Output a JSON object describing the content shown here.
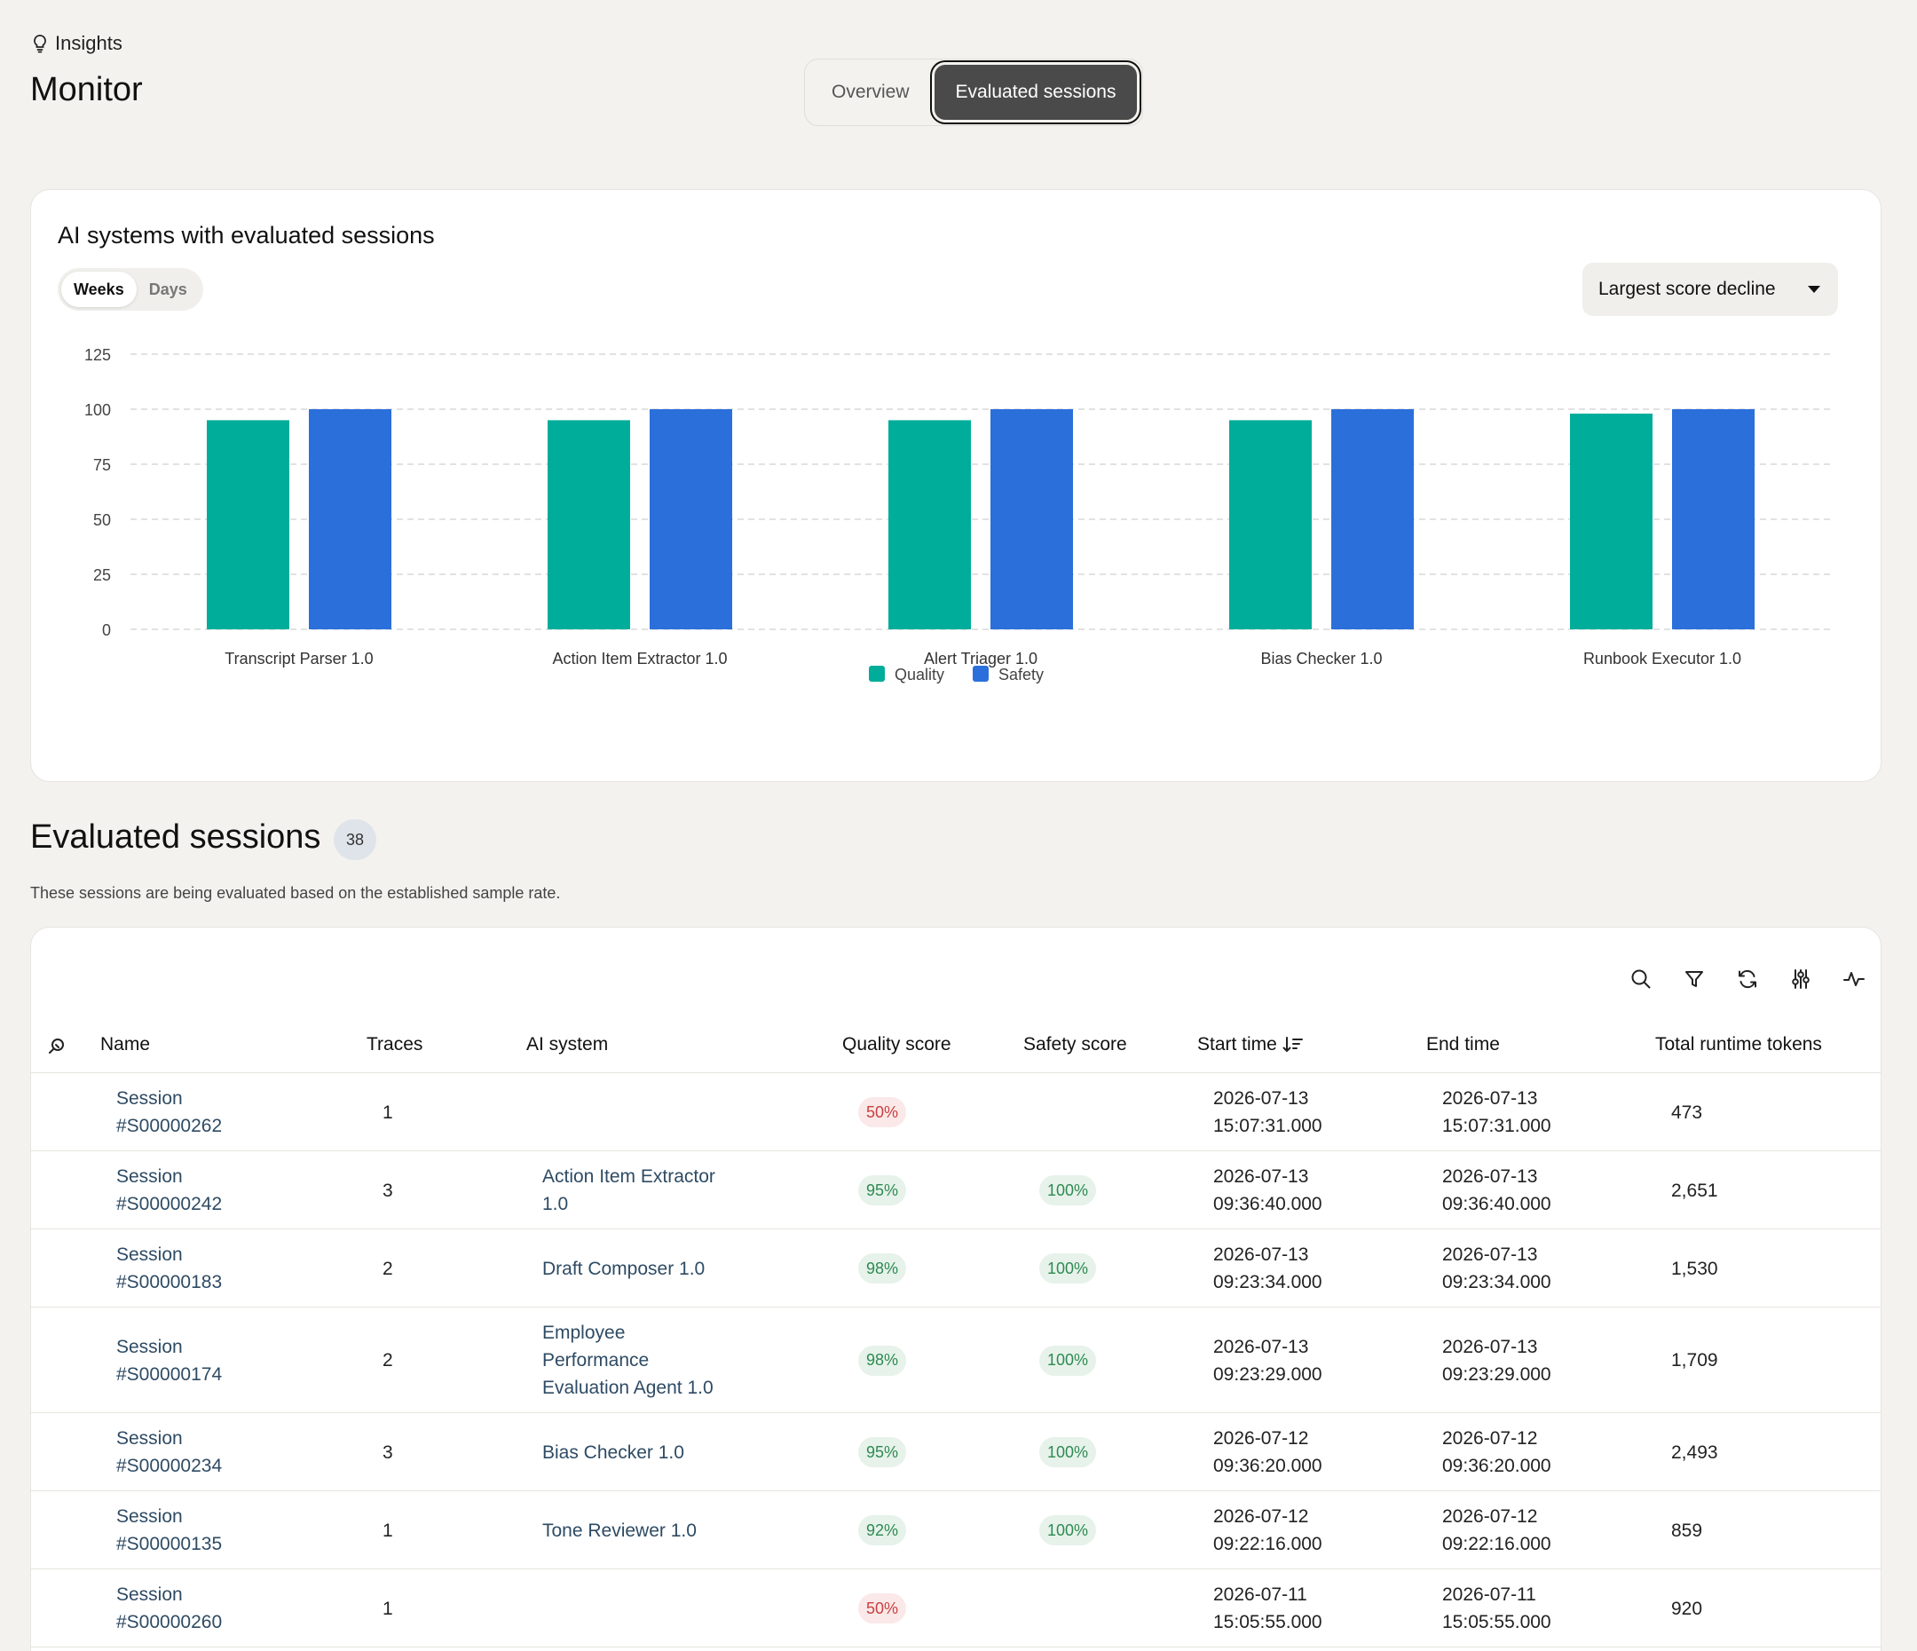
{
  "breadcrumb": {
    "icon": "lightbulb-icon",
    "label": "Insights"
  },
  "page_title": "Monitor",
  "view_tabs": [
    {
      "label": "Overview",
      "active": false
    },
    {
      "label": "Evaluated sessions",
      "active": true
    }
  ],
  "chart_card": {
    "title": "AI systems with evaluated sessions",
    "granularity_options": [
      {
        "label": "Weeks",
        "active": true
      },
      {
        "label": "Days",
        "active": false
      }
    ],
    "sort_dropdown": {
      "selected": "Largest score decline"
    }
  },
  "chart_data": {
    "type": "bar",
    "title": "",
    "xlabel": "",
    "ylabel": "",
    "ylim": [
      0,
      125
    ],
    "yticks": [
      0,
      25,
      50,
      75,
      100,
      125
    ],
    "grid": true,
    "legend_position": "bottom-center",
    "categories": [
      "Transcript Parser 1.0",
      "Action Item Extractor 1.0",
      "Alert Triager 1.0",
      "Bias Checker 1.0",
      "Runbook Executor 1.0"
    ],
    "series": [
      {
        "name": "Quality",
        "color": "#00ad9a",
        "values": [
          95,
          95,
          95,
          95,
          98
        ]
      },
      {
        "name": "Safety",
        "color": "#2b6fdb",
        "values": [
          100,
          100,
          100,
          100,
          100
        ]
      }
    ]
  },
  "sessions_section": {
    "title": "Evaluated sessions",
    "count": "38",
    "description": "These sessions are being evaluated based on the established sample rate."
  },
  "toolbar_icons": [
    "search-icon",
    "filter-icon",
    "refresh-icon",
    "column-settings-icon",
    "activity-icon"
  ],
  "table": {
    "columns": {
      "name": "Name",
      "traces": "Traces",
      "ai_system": "AI system",
      "quality": "Quality score",
      "safety": "Safety score",
      "start": "Start time",
      "end": "End time",
      "tokens": "Total runtime tokens"
    },
    "rows": [
      {
        "name": [
          "Session",
          "#S00000262"
        ],
        "traces": "1",
        "ai_system": [],
        "quality": "50%",
        "quality_status": "bad",
        "safety": "",
        "start": [
          "2026-07-13",
          "15:07:31.000"
        ],
        "end": [
          "2026-07-13",
          "15:07:31.000"
        ],
        "tokens": "473"
      },
      {
        "name": [
          "Session",
          "#S00000242"
        ],
        "traces": "3",
        "ai_system": [
          "Action Item Extractor",
          "1.0"
        ],
        "quality": "95%",
        "quality_status": "ok",
        "safety": "100%",
        "start": [
          "2026-07-13",
          "09:36:40.000"
        ],
        "end": [
          "2026-07-13",
          "09:36:40.000"
        ],
        "tokens": "2,651"
      },
      {
        "name": [
          "Session",
          "#S00000183"
        ],
        "traces": "2",
        "ai_system": [
          "Draft Composer 1.0"
        ],
        "quality": "98%",
        "quality_status": "ok",
        "safety": "100%",
        "start": [
          "2026-07-13",
          "09:23:34.000"
        ],
        "end": [
          "2026-07-13",
          "09:23:34.000"
        ],
        "tokens": "1,530"
      },
      {
        "name": [
          "Session",
          "#S00000174"
        ],
        "traces": "2",
        "ai_system": [
          "Employee",
          "Performance",
          "Evaluation Agent 1.0"
        ],
        "quality": "98%",
        "quality_status": "ok",
        "safety": "100%",
        "start": [
          "2026-07-13",
          "09:23:29.000"
        ],
        "end": [
          "2026-07-13",
          "09:23:29.000"
        ],
        "tokens": "1,709"
      },
      {
        "name": [
          "Session",
          "#S00000234"
        ],
        "traces": "3",
        "ai_system": [
          "Bias Checker 1.0"
        ],
        "quality": "95%",
        "quality_status": "ok",
        "safety": "100%",
        "start": [
          "2026-07-12",
          "09:36:20.000"
        ],
        "end": [
          "2026-07-12",
          "09:36:20.000"
        ],
        "tokens": "2,493"
      },
      {
        "name": [
          "Session",
          "#S00000135"
        ],
        "traces": "1",
        "ai_system": [
          "Tone Reviewer 1.0"
        ],
        "quality": "92%",
        "quality_status": "ok",
        "safety": "100%",
        "start": [
          "2026-07-12",
          "09:22:16.000"
        ],
        "end": [
          "2026-07-12",
          "09:22:16.000"
        ],
        "tokens": "859"
      },
      {
        "name": [
          "Session",
          "#S00000260"
        ],
        "traces": "1",
        "ai_system": [],
        "quality": "50%",
        "quality_status": "bad",
        "safety": "",
        "start": [
          "2026-07-11",
          "15:05:55.000"
        ],
        "end": [
          "2026-07-11",
          "15:05:55.000"
        ],
        "tokens": "920"
      }
    ]
  }
}
